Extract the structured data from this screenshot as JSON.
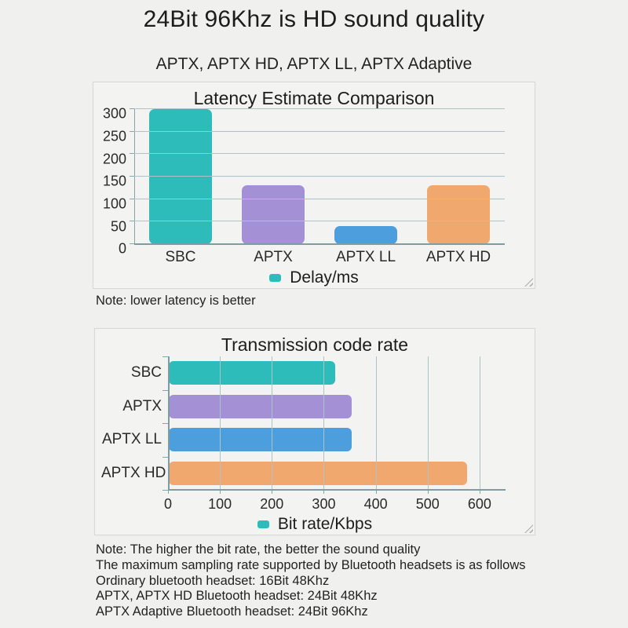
{
  "page": {
    "title": "24Bit 96Khz is HD sound quality",
    "subtitle": "APTX, APTX HD, APTX LL, APTX Adaptive"
  },
  "colors": {
    "teal": "#2dbcba",
    "purple": "#a491d5",
    "blue": "#4d9edc",
    "orange": "#f0a86e",
    "grid": "#aec3c7",
    "axis": "#7d9da4",
    "panel_bg": "#f3f3f2",
    "page_bg": "#f0f0ef"
  },
  "notes": {
    "latency": "Note: lower latency is better",
    "bitrate": "Note: The higher the bit rate, the better the sound quality",
    "sampling_intro": "The maximum sampling rate supported by Bluetooth headsets is as follows",
    "sampling_lines": [
      "Ordinary bluetooth headset: 16Bit 48Khz",
      "APTX, APTX HD Bluetooth headset: 24Bit 48Khz",
      "APTX Adaptive Bluetooth headset: 24Bit 96Khz"
    ]
  },
  "chart_data": [
    {
      "type": "bar",
      "orientation": "vertical",
      "title": "Latency Estimate Comparison",
      "categories": [
        "SBC",
        "APTX",
        "APTX LL",
        "APTX HD"
      ],
      "values": [
        300,
        130,
        40,
        130
      ],
      "bar_colors": [
        "#2dbcba",
        "#a491d5",
        "#4d9edc",
        "#f0a86e"
      ],
      "ylabel": "",
      "xlabel": "",
      "ylim": [
        0,
        300
      ],
      "yticks": [
        0,
        50,
        100,
        150,
        200,
        250,
        300
      ],
      "grid": true,
      "legend": "Delay/ms",
      "legend_color": "#2dbcba",
      "legend_position": "bottom"
    },
    {
      "type": "bar",
      "orientation": "horizontal",
      "title": "Transmission code rate",
      "categories": [
        "SBC",
        "APTX",
        "APTX LL",
        "APTX HD"
      ],
      "values": [
        320,
        352,
        352,
        575
      ],
      "bar_colors": [
        "#2dbcba",
        "#a491d5",
        "#4d9edc",
        "#f0a86e"
      ],
      "ylabel": "",
      "xlabel": "",
      "xlim": [
        0,
        650
      ],
      "xticks": [
        0,
        100,
        200,
        300,
        400,
        500,
        600
      ],
      "grid": true,
      "legend": "Bit rate/Kbps",
      "legend_color": "#2dbcba",
      "legend_position": "bottom"
    }
  ]
}
